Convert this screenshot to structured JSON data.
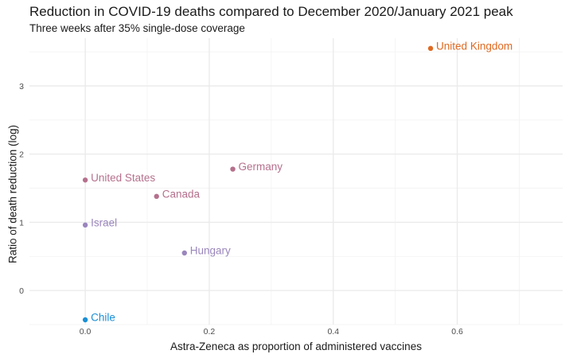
{
  "chart_data": {
    "type": "scatter",
    "title": "Reduction in COVID-19 deaths compared to December 2020/January 2021 peak",
    "subtitle": "Three weeks after 35% single-dose coverage",
    "xlabel": "Astra-Zeneca as proportion of administered vaccines",
    "ylabel": "Ratio of death reduction (log)",
    "xlim": [
      -0.09,
      0.77
    ],
    "ylim": [
      -0.5,
      3.7
    ],
    "xticks": [
      0.0,
      0.2,
      0.4,
      0.6
    ],
    "xtick_labels": [
      "0.0",
      "0.2",
      "0.4",
      "0.6"
    ],
    "yticks": [
      0,
      1,
      2,
      3
    ],
    "ytick_labels": [
      "0",
      "1",
      "2",
      "3"
    ],
    "grid": true,
    "legend": "none",
    "points": [
      {
        "label": "United Kingdom",
        "x": 0.557,
        "y": 3.55,
        "color": "#e06a22"
      },
      {
        "label": "Germany",
        "x": 0.238,
        "y": 1.78,
        "color": "#b5708c"
      },
      {
        "label": "United States",
        "x": 0.0,
        "y": 1.62,
        "color": "#b5708c"
      },
      {
        "label": "Canada",
        "x": 0.115,
        "y": 1.38,
        "color": "#b5708c"
      },
      {
        "label": "Israel",
        "x": 0.0,
        "y": 0.96,
        "color": "#9a86bd"
      },
      {
        "label": "Hungary",
        "x": 0.16,
        "y": 0.55,
        "color": "#9a86bd"
      },
      {
        "label": "Chile",
        "x": 0.0,
        "y": -0.43,
        "color": "#1a8fd6"
      }
    ]
  }
}
